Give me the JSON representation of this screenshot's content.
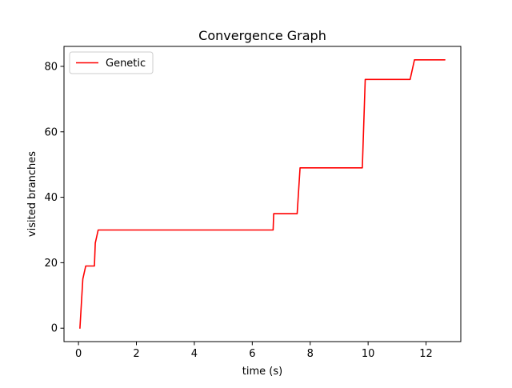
{
  "chart_data": {
    "type": "line",
    "title": "Convergence Graph",
    "xlabel": "time (s)",
    "ylabel": "visited branches",
    "xlim": [
      -0.5,
      13.2
    ],
    "ylim": [
      -4.1,
      86.1
    ],
    "xticks": [
      0,
      2,
      4,
      6,
      8,
      10,
      12
    ],
    "yticks": [
      0,
      20,
      40,
      60,
      80
    ],
    "grid": false,
    "legend_position": "top-left",
    "series": [
      {
        "name": "Genetic",
        "color": "#ff0000",
        "points": [
          [
            0.05,
            0
          ],
          [
            0.15,
            15
          ],
          [
            0.25,
            19
          ],
          [
            0.55,
            19
          ],
          [
            0.58,
            26
          ],
          [
            0.68,
            30
          ],
          [
            6.72,
            30
          ],
          [
            6.74,
            35
          ],
          [
            7.55,
            35
          ],
          [
            7.65,
            49
          ],
          [
            9.8,
            49
          ],
          [
            9.9,
            76
          ],
          [
            11.45,
            76
          ],
          [
            11.6,
            82
          ],
          [
            12.65,
            82
          ]
        ]
      }
    ]
  }
}
